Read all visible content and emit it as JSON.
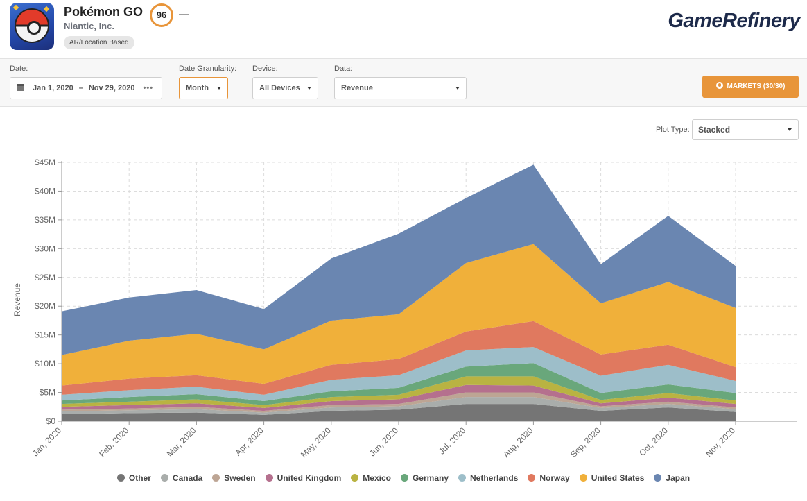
{
  "app": {
    "title": "Pokémon GO",
    "developer": "Niantic, Inc.",
    "genre": "AR/Location Based",
    "score": "96",
    "score_trend": "—"
  },
  "brand": "GameRefinery",
  "filters": {
    "date_label": "Date:",
    "date_start": "Jan 1, 2020",
    "date_sep": "–",
    "date_end": "Nov 29, 2020",
    "date_more": "•••",
    "granularity_label": "Date Granularity:",
    "granularity_value": "Month",
    "device_label": "Device:",
    "device_value": "All Devices",
    "data_label": "Data:",
    "data_value": "Revenue",
    "markets_button": "MARKETS (30/30)"
  },
  "plot_type": {
    "label": "Plot Type:",
    "value": "Stacked"
  },
  "chart_data": {
    "type": "area",
    "stacked": true,
    "ylabel": "Revenue",
    "ylim": [
      0,
      45
    ],
    "y_ticks": [
      "$0",
      "$5M",
      "$10M",
      "$15M",
      "$20M",
      "$25M",
      "$30M",
      "$35M",
      "$40M",
      "$45M"
    ],
    "grid": true,
    "legend_position": "bottom",
    "categories": [
      "Jan, 2020",
      "Feb, 2020",
      "Mar, 2020",
      "Apr, 2020",
      "May, 2020",
      "Jun, 2020",
      "Jul, 2020",
      "Aug, 2020",
      "Sep, 2020",
      "Oct, 2020",
      "Nov, 2020"
    ],
    "series": [
      {
        "name": "Other",
        "color": "#757575",
        "values": [
          1.2,
          1.4,
          1.5,
          1.1,
          1.8,
          2.0,
          3.0,
          3.0,
          1.8,
          2.4,
          1.6
        ]
      },
      {
        "name": "Canada",
        "color": "#a9adab",
        "values": [
          0.5,
          0.5,
          0.6,
          0.4,
          0.6,
          0.6,
          1.2,
          1.2,
          0.5,
          0.6,
          0.5
        ]
      },
      {
        "name": "Sweden",
        "color": "#bda594",
        "values": [
          0.3,
          0.3,
          0.4,
          0.3,
          0.4,
          0.4,
          0.8,
          0.8,
          0.3,
          0.4,
          0.3
        ]
      },
      {
        "name": "United Kingdom",
        "color": "#b5708e",
        "values": [
          0.5,
          0.6,
          0.6,
          0.5,
          0.7,
          0.8,
          1.3,
          1.2,
          0.5,
          0.7,
          0.6
        ]
      },
      {
        "name": "Mexico",
        "color": "#b9b342",
        "values": [
          0.5,
          0.6,
          0.7,
          0.5,
          0.7,
          0.8,
          1.5,
          1.6,
          0.6,
          0.8,
          0.6
        ]
      },
      {
        "name": "Germany",
        "color": "#69a77b",
        "values": [
          0.6,
          0.8,
          0.9,
          0.7,
          1.0,
          1.2,
          1.7,
          2.3,
          1.2,
          1.5,
          1.3
        ]
      },
      {
        "name": "Netherlands",
        "color": "#9dbec9",
        "values": [
          1.0,
          1.2,
          1.3,
          1.1,
          2.0,
          2.2,
          2.8,
          2.8,
          3.0,
          3.4,
          2.1
        ]
      },
      {
        "name": "Norway",
        "color": "#e0795f",
        "values": [
          1.6,
          2.0,
          2.0,
          1.9,
          2.6,
          2.8,
          3.3,
          4.5,
          3.7,
          3.5,
          2.4
        ]
      },
      {
        "name": "United States",
        "color": "#f0b03a",
        "values": [
          5.3,
          6.6,
          7.2,
          6.0,
          7.7,
          7.8,
          11.9,
          13.4,
          8.9,
          10.9,
          10.3
        ]
      },
      {
        "name": "Japan",
        "color": "#6a86b1",
        "values": [
          7.6,
          7.5,
          7.6,
          7.0,
          10.8,
          14.0,
          11.3,
          13.8,
          6.8,
          11.5,
          7.3
        ]
      }
    ]
  }
}
